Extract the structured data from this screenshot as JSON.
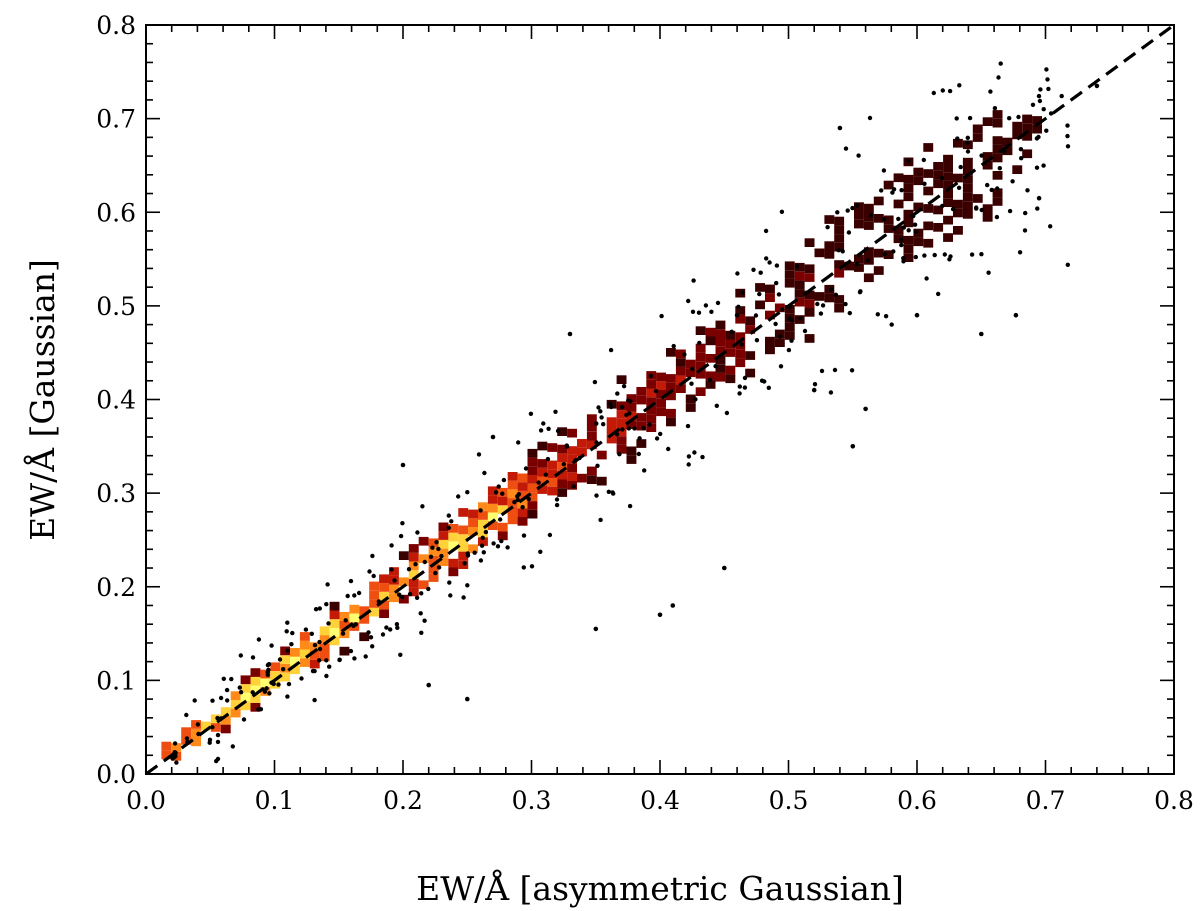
{
  "chart_data": {
    "type": "heatmap",
    "xlabel": "EW/Å [asymmetric Gaussian]",
    "ylabel": "EW/Å [Gaussian]",
    "xlim": [
      0.0,
      0.8
    ],
    "ylim": [
      0.0,
      0.8
    ],
    "x_ticks": [
      "0.0",
      "0.1",
      "0.2",
      "0.3",
      "0.4",
      "0.5",
      "0.6",
      "0.7",
      "0.8"
    ],
    "y_ticks": [
      "0.0",
      "0.1",
      "0.2",
      "0.3",
      "0.4",
      "0.5",
      "0.6",
      "0.7",
      "0.8"
    ],
    "grid": false,
    "colormap": [
      "#3a0000",
      "#7a0000",
      "#c21a06",
      "#ee4e10",
      "#ff8a1a",
      "#ffd23a",
      "#ffff70"
    ],
    "one_to_one_line": {
      "from": [
        0.0,
        0.0
      ],
      "to": [
        0.8,
        0.8
      ],
      "style": "dashed",
      "color": "#000000"
    },
    "density_ridge": [
      {
        "x": 0.025,
        "max_density": 0.75
      },
      {
        "x": 0.05,
        "max_density": 0.95
      },
      {
        "x": 0.08,
        "max_density": 0.9
      },
      {
        "x": 0.11,
        "max_density": 1.0
      },
      {
        "x": 0.15,
        "max_density": 0.9
      },
      {
        "x": 0.2,
        "max_density": 0.7
      },
      {
        "x": 0.26,
        "max_density": 0.85
      },
      {
        "x": 0.3,
        "max_density": 0.5
      },
      {
        "x": 0.4,
        "max_density": 0.25
      },
      {
        "x": 0.5,
        "max_density": 0.15
      },
      {
        "x": 0.6,
        "max_density": 0.1
      },
      {
        "x": 0.68,
        "max_density": 0.05
      }
    ],
    "outlier_points": [
      [
        0.41,
        0.18
      ],
      [
        0.35,
        0.155
      ],
      [
        0.25,
        0.08
      ],
      [
        0.22,
        0.095
      ],
      [
        0.54,
        0.69
      ],
      [
        0.677,
        0.49
      ],
      [
        0.74,
        0.735
      ],
      [
        0.695,
        0.615
      ],
      [
        0.56,
        0.39
      ],
      [
        0.52,
        0.41
      ],
      [
        0.46,
        0.49
      ],
      [
        0.33,
        0.47
      ],
      [
        0.27,
        0.36
      ],
      [
        0.2,
        0.33
      ],
      [
        0.45,
        0.22
      ],
      [
        0.4,
        0.17
      ],
      [
        0.55,
        0.35
      ],
      [
        0.6,
        0.49
      ],
      [
        0.65,
        0.47
      ],
      [
        0.13,
        0.11
      ]
    ]
  }
}
